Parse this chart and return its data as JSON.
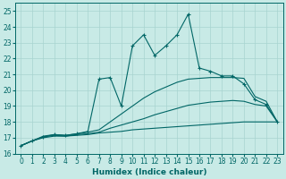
{
  "xlabel": "Humidex (Indice chaleur)",
  "background_color": "#c8eae6",
  "grid_color": "#a8d4d0",
  "line_color": "#006666",
  "xlim": [
    -0.5,
    23.5
  ],
  "ylim": [
    16,
    25.5
  ],
  "xticks": [
    0,
    1,
    2,
    3,
    4,
    5,
    6,
    7,
    8,
    9,
    10,
    11,
    12,
    13,
    14,
    15,
    16,
    17,
    18,
    19,
    20,
    21,
    22,
    23
  ],
  "yticks": [
    16,
    17,
    18,
    19,
    20,
    21,
    22,
    23,
    24,
    25
  ],
  "series": [
    {
      "x": [
        0,
        1,
        2,
        3,
        4,
        5,
        6,
        7,
        8,
        9,
        10,
        11,
        12,
        13,
        14,
        15,
        16,
        17,
        18,
        19,
        20,
        21,
        22,
        23
      ],
      "y": [
        16.5,
        16.8,
        17.0,
        17.1,
        17.1,
        17.15,
        17.2,
        17.3,
        17.35,
        17.4,
        17.5,
        17.55,
        17.6,
        17.65,
        17.7,
        17.75,
        17.8,
        17.85,
        17.9,
        17.95,
        18.0,
        18.0,
        18.0,
        18.0
      ],
      "marker": false
    },
    {
      "x": [
        0,
        1,
        2,
        3,
        4,
        5,
        6,
        7,
        8,
        9,
        10,
        11,
        12,
        13,
        14,
        15,
        16,
        17,
        18,
        19,
        20,
        21,
        22,
        23
      ],
      "y": [
        16.5,
        16.8,
        17.05,
        17.15,
        17.1,
        17.2,
        17.25,
        17.35,
        17.6,
        17.8,
        18.0,
        18.2,
        18.45,
        18.65,
        18.85,
        19.05,
        19.15,
        19.25,
        19.3,
        19.35,
        19.3,
        19.1,
        19.0,
        18.0
      ],
      "marker": false
    },
    {
      "x": [
        0,
        1,
        2,
        3,
        4,
        5,
        6,
        7,
        8,
        9,
        10,
        11,
        12,
        13,
        14,
        15,
        16,
        17,
        18,
        19,
        20,
        21,
        22,
        23
      ],
      "y": [
        16.5,
        16.8,
        17.1,
        17.2,
        17.15,
        17.25,
        17.35,
        17.5,
        18.0,
        18.5,
        19.0,
        19.5,
        19.9,
        20.2,
        20.5,
        20.7,
        20.75,
        20.8,
        20.8,
        20.8,
        20.75,
        19.6,
        19.3,
        18.0
      ],
      "marker": false
    },
    {
      "x": [
        0,
        1,
        2,
        3,
        4,
        5,
        6,
        7,
        8,
        9,
        10,
        11,
        12,
        13,
        14,
        15,
        16,
        17,
        18,
        19,
        20,
        21,
        22,
        23
      ],
      "y": [
        16.5,
        16.8,
        17.05,
        17.2,
        17.15,
        17.25,
        17.4,
        20.7,
        20.8,
        19.0,
        22.8,
        23.5,
        22.2,
        22.8,
        23.5,
        24.8,
        21.4,
        21.2,
        20.9,
        20.9,
        20.4,
        19.4,
        19.1,
        18.0
      ],
      "marker": true
    }
  ]
}
